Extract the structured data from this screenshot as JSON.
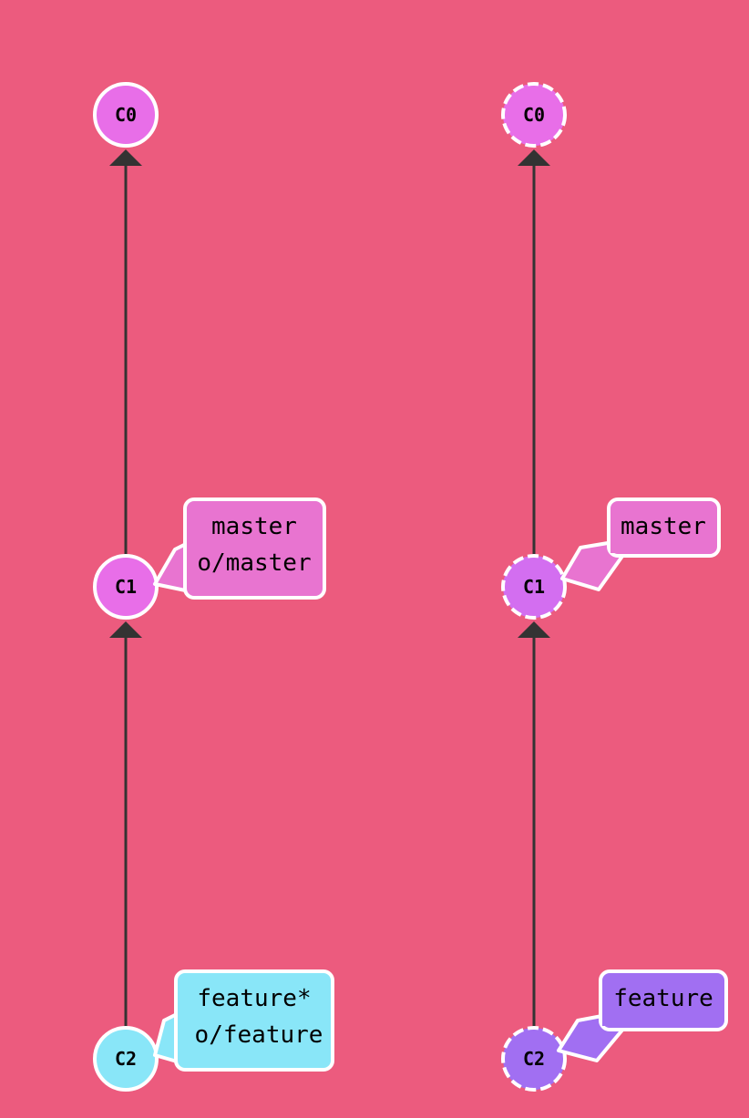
{
  "background": "#ec5b7e",
  "local_repo": {
    "commits": [
      {
        "id": "C0",
        "color": "#e86ee8",
        "dashed": false
      },
      {
        "id": "C1",
        "color": "#e86ee8",
        "dashed": false
      },
      {
        "id": "C2",
        "color": "#89e6f8",
        "dashed": false
      }
    ],
    "branches": [
      {
        "lines": [
          "master",
          "o/master"
        ],
        "target": "C1",
        "color": "#e874d0"
      },
      {
        "lines": [
          "feature*",
          "o/feature"
        ],
        "target": "C2",
        "color": "#89e6f8"
      }
    ]
  },
  "remote_repo": {
    "commits": [
      {
        "id": "C0",
        "color": "#e86ee8",
        "dashed": true
      },
      {
        "id": "C1",
        "color": "#d36ef0",
        "dashed": true
      },
      {
        "id": "C2",
        "color": "#a16ff2",
        "dashed": true
      }
    ],
    "branches": [
      {
        "lines": [
          "master"
        ],
        "target": "C1",
        "color": "#e874d0"
      },
      {
        "lines": [
          "feature"
        ],
        "target": "C2",
        "color": "#a16ff2"
      }
    ]
  }
}
